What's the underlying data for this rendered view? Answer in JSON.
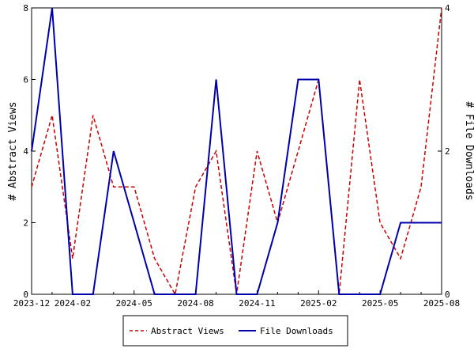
{
  "chart_data": {
    "type": "line",
    "x": [
      "2023-12",
      "2024-01",
      "2024-02",
      "2024-03",
      "2024-04",
      "2024-05",
      "2024-06",
      "2024-07",
      "2024-08",
      "2024-09",
      "2024-10",
      "2024-11",
      "2024-12",
      "2025-01",
      "2025-02",
      "2025-03",
      "2025-04",
      "2025-05",
      "2025-06",
      "2025-07",
      "2025-08"
    ],
    "xticks": [
      "2023-12",
      "2024-02",
      "2024-05",
      "2024-08",
      "2024-11",
      "2025-02",
      "2025-05",
      "2025-08"
    ],
    "yleft_label": "# Abstract Views",
    "yright_label": "# File Downloads",
    "yleft_lim": [
      0,
      8
    ],
    "yright_lim": [
      0,
      4
    ],
    "yleft_ticks": [
      0,
      2,
      4,
      6,
      8
    ],
    "yright_ticks": [
      0,
      2,
      4
    ],
    "legend_position": "bottom",
    "series": [
      {
        "name": "Abstract Views",
        "axis": "left",
        "color": "#cc0000",
        "style": "dashed",
        "values": [
          3,
          5,
          1,
          5,
          3,
          3,
          1,
          0,
          3,
          4,
          0,
          4,
          2,
          4,
          6,
          0,
          6,
          2,
          1,
          3,
          8
        ]
      },
      {
        "name": "File Downloads",
        "axis": "right",
        "color": "#0000aa",
        "style": "solid",
        "values": [
          2,
          4,
          0,
          0,
          2,
          1,
          0,
          0,
          0,
          3,
          0,
          0,
          1,
          3,
          3,
          0,
          0,
          0,
          1,
          1,
          1
        ]
      }
    ]
  }
}
